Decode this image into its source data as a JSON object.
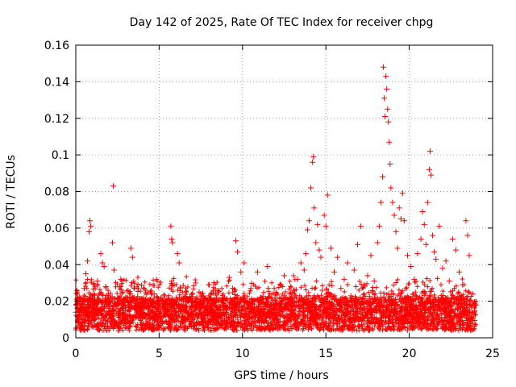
{
  "chart_data": {
    "type": "scatter",
    "title": "Day 142 of 2025, Rate Of TEC Index for receiver chpg",
    "xlabel": "GPS time / hours",
    "ylabel": "ROTI / TECUs",
    "xlim": [
      0,
      25
    ],
    "ylim": [
      0,
      0.16
    ],
    "x_ticks": [
      0,
      5,
      10,
      15,
      20,
      25
    ],
    "y_ticks": [
      0,
      0.02,
      0.04,
      0.06,
      0.08,
      0.1,
      0.12,
      0.14,
      0.16
    ],
    "x_tick_labels": [
      "0",
      "5",
      "10",
      "15",
      "20",
      "25"
    ],
    "y_tick_labels": [
      "0",
      "0.02",
      "0.04",
      "0.06",
      "0.08",
      "0.1",
      "0.12",
      "0.14",
      "0.16"
    ],
    "grid": true,
    "marker": "+",
    "color": "#ff0000",
    "series": [
      {
        "name": "ROTI",
        "points": [
          [
            0.0,
            0.014
          ],
          [
            0.1,
            0.018
          ],
          [
            0.2,
            0.012
          ],
          [
            0.3,
            0.021
          ],
          [
            0.4,
            0.016
          ],
          [
            0.5,
            0.027
          ],
          [
            0.6,
            0.035
          ],
          [
            0.7,
            0.042
          ],
          [
            0.8,
            0.058
          ],
          [
            0.85,
            0.064
          ],
          [
            0.9,
            0.061
          ],
          [
            1.0,
            0.019
          ],
          [
            1.1,
            0.024
          ],
          [
            1.2,
            0.015
          ],
          [
            1.3,
            0.031
          ],
          [
            1.5,
            0.046
          ],
          [
            1.6,
            0.041
          ],
          [
            1.7,
            0.039
          ],
          [
            1.8,
            0.028
          ],
          [
            2.0,
            0.016
          ],
          [
            2.2,
            0.052
          ],
          [
            2.25,
            0.083
          ],
          [
            2.3,
            0.037
          ],
          [
            2.5,
            0.021
          ],
          [
            2.7,
            0.032
          ],
          [
            2.9,
            0.013
          ],
          [
            3.1,
            0.018
          ],
          [
            3.3,
            0.049
          ],
          [
            3.4,
            0.044
          ],
          [
            3.5,
            0.022
          ],
          [
            3.7,
            0.015
          ],
          [
            3.9,
            0.012
          ],
          [
            4.1,
            0.027
          ],
          [
            4.3,
            0.017
          ],
          [
            4.5,
            0.011
          ],
          [
            4.7,
            0.024
          ],
          [
            4.9,
            0.019
          ],
          [
            5.1,
            0.014
          ],
          [
            5.3,
            0.023
          ],
          [
            5.5,
            0.018
          ],
          [
            5.7,
            0.061
          ],
          [
            5.75,
            0.054
          ],
          [
            5.8,
            0.052
          ],
          [
            5.9,
            0.029
          ],
          [
            6.1,
            0.046
          ],
          [
            6.2,
            0.041
          ],
          [
            6.4,
            0.017
          ],
          [
            6.6,
            0.022
          ],
          [
            6.8,
            0.013
          ],
          [
            7.0,
            0.019
          ],
          [
            7.2,
            0.016
          ],
          [
            7.4,
            0.025
          ],
          [
            7.6,
            0.011
          ],
          [
            7.8,
            0.021
          ],
          [
            8.0,
            0.029
          ],
          [
            8.2,
            0.015
          ],
          [
            8.4,
            0.018
          ],
          [
            8.6,
            0.012
          ],
          [
            8.8,
            0.022
          ],
          [
            9.0,
            0.014
          ],
          [
            9.2,
            0.033
          ],
          [
            9.4,
            0.027
          ],
          [
            9.6,
            0.053
          ],
          [
            9.7,
            0.047
          ],
          [
            9.9,
            0.036
          ],
          [
            10.1,
            0.041
          ],
          [
            10.3,
            0.019
          ],
          [
            10.5,
            0.027
          ],
          [
            10.7,
            0.016
          ],
          [
            10.9,
            0.036
          ],
          [
            11.1,
            0.022
          ],
          [
            11.3,
            0.014
          ],
          [
            11.5,
            0.039
          ],
          [
            11.7,
            0.018
          ],
          [
            11.9,
            0.027
          ],
          [
            12.1,
            0.013
          ],
          [
            12.3,
            0.029
          ],
          [
            12.5,
            0.034
          ],
          [
            12.7,
            0.021
          ],
          [
            12.9,
            0.017
          ],
          [
            13.1,
            0.026
          ],
          [
            13.3,
            0.032
          ],
          [
            13.5,
            0.041
          ],
          [
            13.7,
            0.037
          ],
          [
            13.8,
            0.046
          ],
          [
            13.9,
            0.059
          ],
          [
            14.0,
            0.064
          ],
          [
            14.1,
            0.082
          ],
          [
            14.2,
            0.096
          ],
          [
            14.25,
            0.099
          ],
          [
            14.3,
            0.071
          ],
          [
            14.4,
            0.052
          ],
          [
            14.5,
            0.062
          ],
          [
            14.6,
            0.048
          ],
          [
            14.7,
            0.044
          ],
          [
            14.9,
            0.067
          ],
          [
            15.0,
            0.061
          ],
          [
            15.1,
            0.078
          ],
          [
            15.3,
            0.049
          ],
          [
            15.5,
            0.036
          ],
          [
            15.7,
            0.044
          ],
          [
            15.9,
            0.027
          ],
          [
            16.1,
            0.032
          ],
          [
            16.3,
            0.041
          ],
          [
            16.5,
            0.023
          ],
          [
            16.7,
            0.037
          ],
          [
            16.9,
            0.051
          ],
          [
            17.1,
            0.061
          ],
          [
            17.3,
            0.029
          ],
          [
            17.5,
            0.034
          ],
          [
            17.7,
            0.045
          ],
          [
            17.9,
            0.031
          ],
          [
            18.1,
            0.052
          ],
          [
            18.2,
            0.061
          ],
          [
            18.3,
            0.074
          ],
          [
            18.4,
            0.088
          ],
          [
            18.45,
            0.148
          ],
          [
            18.5,
            0.131
          ],
          [
            18.55,
            0.121
          ],
          [
            18.6,
            0.143
          ],
          [
            18.65,
            0.136
          ],
          [
            18.7,
            0.125
          ],
          [
            18.75,
            0.118
          ],
          [
            18.8,
            0.107
          ],
          [
            18.85,
            0.095
          ],
          [
            18.9,
            0.082
          ],
          [
            19.0,
            0.074
          ],
          [
            19.1,
            0.067
          ],
          [
            19.2,
            0.058
          ],
          [
            19.3,
            0.049
          ],
          [
            19.4,
            0.071
          ],
          [
            19.5,
            0.065
          ],
          [
            19.6,
            0.079
          ],
          [
            19.7,
            0.064
          ],
          [
            19.9,
            0.045
          ],
          [
            20.1,
            0.039
          ],
          [
            20.3,
            0.032
          ],
          [
            20.5,
            0.046
          ],
          [
            20.7,
            0.054
          ],
          [
            20.8,
            0.069
          ],
          [
            20.9,
            0.062
          ],
          [
            21.0,
            0.051
          ],
          [
            21.1,
            0.074
          ],
          [
            21.2,
            0.092
          ],
          [
            21.25,
            0.102
          ],
          [
            21.3,
            0.089
          ],
          [
            21.4,
            0.056
          ],
          [
            21.5,
            0.047
          ],
          [
            21.6,
            0.043
          ],
          [
            21.8,
            0.061
          ],
          [
            22.0,
            0.038
          ],
          [
            22.2,
            0.042
          ],
          [
            22.4,
            0.031
          ],
          [
            22.6,
            0.054
          ],
          [
            22.8,
            0.048
          ],
          [
            23.0,
            0.036
          ],
          [
            23.2,
            0.029
          ],
          [
            23.4,
            0.064
          ],
          [
            23.5,
            0.056
          ],
          [
            23.6,
            0.045
          ],
          [
            23.8,
            0.024
          ],
          [
            24.0,
            0.018
          ]
        ]
      }
    ]
  }
}
